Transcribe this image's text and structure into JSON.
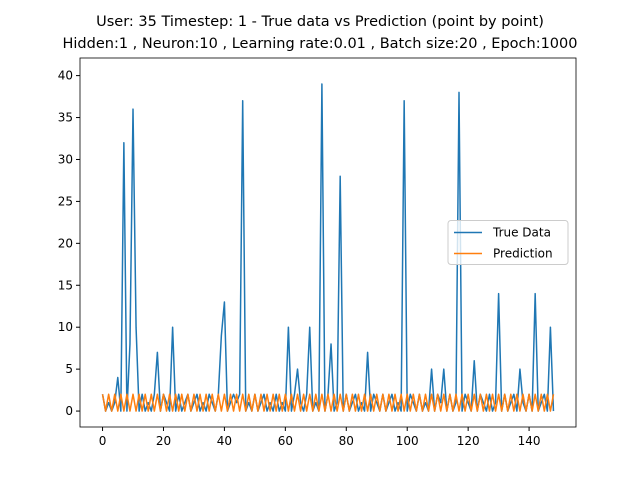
{
  "chart_data": {
    "type": "line",
    "title": "User: 35 Timestep: 1 - True data vs Prediction (point by point)",
    "subtitle": "Hidden:1 , Neuron:10 , Learning rate:0.01 , Batch size:20 , Epoch:1000",
    "x": [
      0,
      1,
      2,
      3,
      4,
      5,
      6,
      7,
      8,
      9,
      10,
      11,
      12,
      13,
      14,
      15,
      16,
      17,
      18,
      19,
      20,
      21,
      22,
      23,
      24,
      25,
      26,
      27,
      28,
      29,
      30,
      31,
      32,
      33,
      34,
      35,
      36,
      37,
      38,
      39,
      40,
      41,
      42,
      43,
      44,
      45,
      46,
      47,
      48,
      49,
      50,
      51,
      52,
      53,
      54,
      55,
      56,
      57,
      58,
      59,
      60,
      61,
      62,
      63,
      64,
      65,
      66,
      67,
      68,
      69,
      70,
      71,
      72,
      73,
      74,
      75,
      76,
      77,
      78,
      79,
      80,
      81,
      82,
      83,
      84,
      85,
      86,
      87,
      88,
      89,
      90,
      91,
      92,
      93,
      94,
      95,
      96,
      97,
      98,
      99,
      100,
      101,
      102,
      103,
      104,
      105,
      106,
      107,
      108,
      109,
      110,
      111,
      112,
      113,
      114,
      115,
      116,
      117,
      118,
      119,
      120,
      121,
      122,
      123,
      124,
      125,
      126,
      127,
      128,
      129,
      130,
      131,
      132,
      133,
      134,
      135,
      136,
      137,
      138,
      139,
      140,
      141,
      142,
      143,
      144,
      145,
      146,
      147,
      148
    ],
    "series": [
      {
        "name": "True Data",
        "color": "#1f77b4",
        "values": [
          2,
          0,
          1,
          0,
          1,
          4,
          0,
          32,
          0,
          8,
          36,
          10,
          0,
          2,
          0,
          1,
          0,
          2,
          7,
          0,
          2,
          1,
          0,
          10,
          0,
          2,
          0,
          1,
          2,
          0,
          1,
          2,
          0,
          1,
          0,
          2,
          1,
          0,
          2,
          9,
          13,
          0,
          1,
          2,
          1,
          2,
          37,
          0,
          1,
          0,
          2,
          0,
          1,
          2,
          0,
          1,
          0,
          2,
          0,
          1,
          0,
          10,
          0,
          2,
          5,
          1,
          0,
          2,
          10,
          0,
          1,
          0,
          39,
          0,
          2,
          8,
          0,
          1,
          28,
          0,
          2,
          0,
          1,
          2,
          0,
          1,
          0,
          7,
          0,
          2,
          1,
          0,
          2,
          0,
          1,
          2,
          0,
          1,
          0,
          37,
          0,
          2,
          1,
          0,
          2,
          0,
          1,
          0,
          5,
          0,
          2,
          1,
          5,
          0,
          2,
          0,
          1,
          38,
          0,
          2,
          1,
          0,
          6,
          0,
          2,
          1,
          0,
          2,
          0,
          1,
          14,
          0,
          2,
          0,
          1,
          2,
          0,
          5,
          1,
          0,
          2,
          0,
          14,
          0,
          1,
          2,
          0,
          10,
          0
        ]
      },
      {
        "name": "Prediction",
        "color": "#ff7f0e",
        "values": [
          2,
          0,
          2,
          0,
          2,
          0,
          2,
          0,
          2,
          0,
          2,
          0,
          2,
          0,
          2,
          0,
          2,
          0,
          2,
          0,
          2,
          0,
          2,
          0,
          2,
          0,
          2,
          0,
          2,
          0,
          2,
          0,
          2,
          0,
          2,
          0,
          2,
          0,
          2,
          0,
          2,
          0,
          2,
          0,
          2,
          0,
          2,
          0,
          2,
          0,
          2,
          0,
          2,
          0,
          2,
          0,
          2,
          0,
          2,
          0,
          2,
          0,
          2,
          0,
          2,
          0,
          2,
          0,
          2,
          0,
          2,
          0,
          2,
          0,
          2,
          0,
          2,
          0,
          2,
          0,
          2,
          0,
          2,
          0,
          2,
          0,
          2,
          0,
          2,
          0,
          2,
          0,
          2,
          0,
          2,
          0,
          2,
          0,
          2,
          0,
          2,
          0,
          2,
          0,
          2,
          0,
          2,
          0,
          2,
          0,
          2,
          0,
          2,
          0,
          2,
          0,
          2,
          0,
          2,
          0,
          2,
          0,
          2,
          0,
          2,
          0,
          2,
          0,
          2,
          0,
          2,
          0,
          2,
          0,
          2,
          0,
          2,
          0,
          2,
          0,
          2,
          0,
          2,
          0,
          2,
          0,
          2,
          0,
          2
        ]
      }
    ],
    "xlim": [
      -7.4,
      155.4
    ],
    "ylim": [
      -1.9,
      42.1
    ],
    "xticks": [
      0,
      20,
      40,
      60,
      80,
      100,
      120,
      140
    ],
    "yticks": [
      0,
      5,
      10,
      15,
      20,
      25,
      30,
      35,
      40
    ],
    "legend": "center right"
  }
}
